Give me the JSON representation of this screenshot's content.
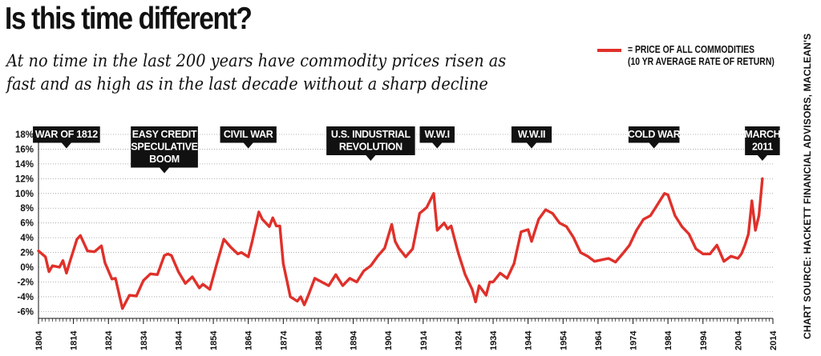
{
  "title": "Is this time different?",
  "subtitle": "At no time in the last 200 years have commodity prices risen as fast and as high as in the last decade without a sharp decline",
  "legend": {
    "line1": "= PRICE OF ALL COMMODITIES",
    "line2": "(10 YR AVERAGE RATE OF RETURN)"
  },
  "source": "CHART SOURCE: HACKETT FINANCIAL ADVISORS, MACLEAN'S",
  "colors": {
    "series": "#e0302a",
    "callout": "#111111"
  },
  "chart_data": {
    "type": "line",
    "xlim": [
      1804,
      2014
    ],
    "ylim": [
      -6.5,
      18
    ],
    "x_ticks": [
      1804,
      1814,
      1824,
      1834,
      1844,
      1854,
      1864,
      1874,
      1884,
      1894,
      1904,
      1914,
      1924,
      1934,
      1944,
      1954,
      1964,
      1974,
      1984,
      1994,
      2004,
      2014
    ],
    "y_ticks": [
      -6,
      -4,
      -2,
      0,
      2,
      4,
      6,
      8,
      10,
      12,
      14,
      16,
      18
    ],
    "y_tick_labels": [
      "-6%",
      "-4%",
      "-2%",
      "0%",
      "2%",
      "4%",
      "6%",
      "8%",
      "10%",
      "12%",
      "14%",
      "16%",
      "18%"
    ],
    "series": [
      {
        "name": "= PRICE OF ALL COMMODITIES (10 YR AVERAGE RATE OF RETURN)",
        "x": [
          1804,
          1806,
          1807,
          1808,
          1810,
          1811,
          1812,
          1813,
          1815,
          1816,
          1818,
          1820,
          1822,
          1823,
          1825,
          1826,
          1828,
          1830,
          1832,
          1834,
          1836,
          1838,
          1840,
          1841,
          1842,
          1844,
          1846,
          1848,
          1850,
          1851,
          1853,
          1855,
          1857,
          1859,
          1861,
          1862,
          1864,
          1865,
          1867,
          1868,
          1870,
          1871,
          1872,
          1873,
          1874,
          1876,
          1878,
          1879,
          1880,
          1881,
          1883,
          1885,
          1887,
          1889,
          1891,
          1893,
          1895,
          1897,
          1899,
          1901,
          1903,
          1905,
          1906,
          1907,
          1909,
          1911,
          1913,
          1915,
          1917,
          1918,
          1920,
          1921,
          1922,
          1924,
          1926,
          1928,
          1929,
          1930,
          1932,
          1933,
          1934,
          1936,
          1938,
          1940,
          1942,
          1944,
          1945,
          1947,
          1949,
          1951,
          1953,
          1955,
          1957,
          1959,
          1961,
          1963,
          1965,
          1967,
          1969,
          1971,
          1973,
          1975,
          1977,
          1979,
          1981,
          1983,
          1984,
          1986,
          1988,
          1990,
          1992,
          1994,
          1996,
          1998,
          2000,
          2002,
          2004,
          2005,
          2006,
          2007,
          2008,
          2009,
          2010,
          2011
        ],
        "y": [
          2.2,
          1.4,
          -0.6,
          0.2,
          0.0,
          0.9,
          -0.8,
          0.8,
          3.8,
          4.3,
          2.2,
          2.1,
          2.9,
          0.6,
          -1.6,
          -1.5,
          -5.6,
          -3.8,
          -3.9,
          -1.8,
          -0.9,
          -1.0,
          1.6,
          1.8,
          1.6,
          -0.6,
          -2.2,
          -1.3,
          -2.8,
          -2.3,
          -3.0,
          0.5,
          3.8,
          2.7,
          1.8,
          2.0,
          1.4,
          3.3,
          7.5,
          6.5,
          5.5,
          6.7,
          5.6,
          5.6,
          0.5,
          -4.0,
          -4.6,
          -4.0,
          -5.1,
          -4.0,
          -1.5,
          -2.0,
          -2.5,
          -1.0,
          -2.5,
          -1.5,
          -2.0,
          -0.5,
          0.2,
          1.5,
          2.6,
          5.8,
          3.5,
          2.6,
          1.4,
          2.5,
          7.3,
          8.1,
          10.0,
          5.0,
          6.0,
          5.2,
          5.6,
          2.0,
          -1.0,
          -3.0,
          -4.7,
          -2.5,
          -3.8,
          -2.0,
          -2.0,
          -0.8,
          -1.5,
          0.5,
          4.8,
          5.1,
          3.5,
          6.5,
          7.8,
          7.3,
          6.0,
          5.5,
          4.0,
          2.0,
          1.5,
          0.8,
          1.0,
          1.2,
          0.7,
          1.8,
          3.0,
          5.0,
          6.5,
          7.0,
          8.5,
          10.0,
          9.8,
          7.0,
          5.5,
          4.5,
          2.5,
          1.8,
          1.8,
          3.0,
          0.8,
          1.5,
          1.2,
          1.8,
          3.0,
          4.5,
          9.0,
          5.0,
          7.0,
          12.0
        ]
      }
    ],
    "annotations": [
      {
        "label": "WAR OF 1812",
        "year": 1812
      },
      {
        "label": "EASY CREDIT SPECULATIVE BOOM",
        "year": 1840
      },
      {
        "label": "CIVIL WAR",
        "year": 1864
      },
      {
        "label": "U.S. INDUSTRIAL REVOLUTION",
        "year": 1899
      },
      {
        "label": "W.W.I",
        "year": 1918
      },
      {
        "label": "W.W.II",
        "year": 1945
      },
      {
        "label": "COLD WAR",
        "year": 1980
      },
      {
        "label": "MARCH 2011",
        "year": 2011
      }
    ]
  }
}
